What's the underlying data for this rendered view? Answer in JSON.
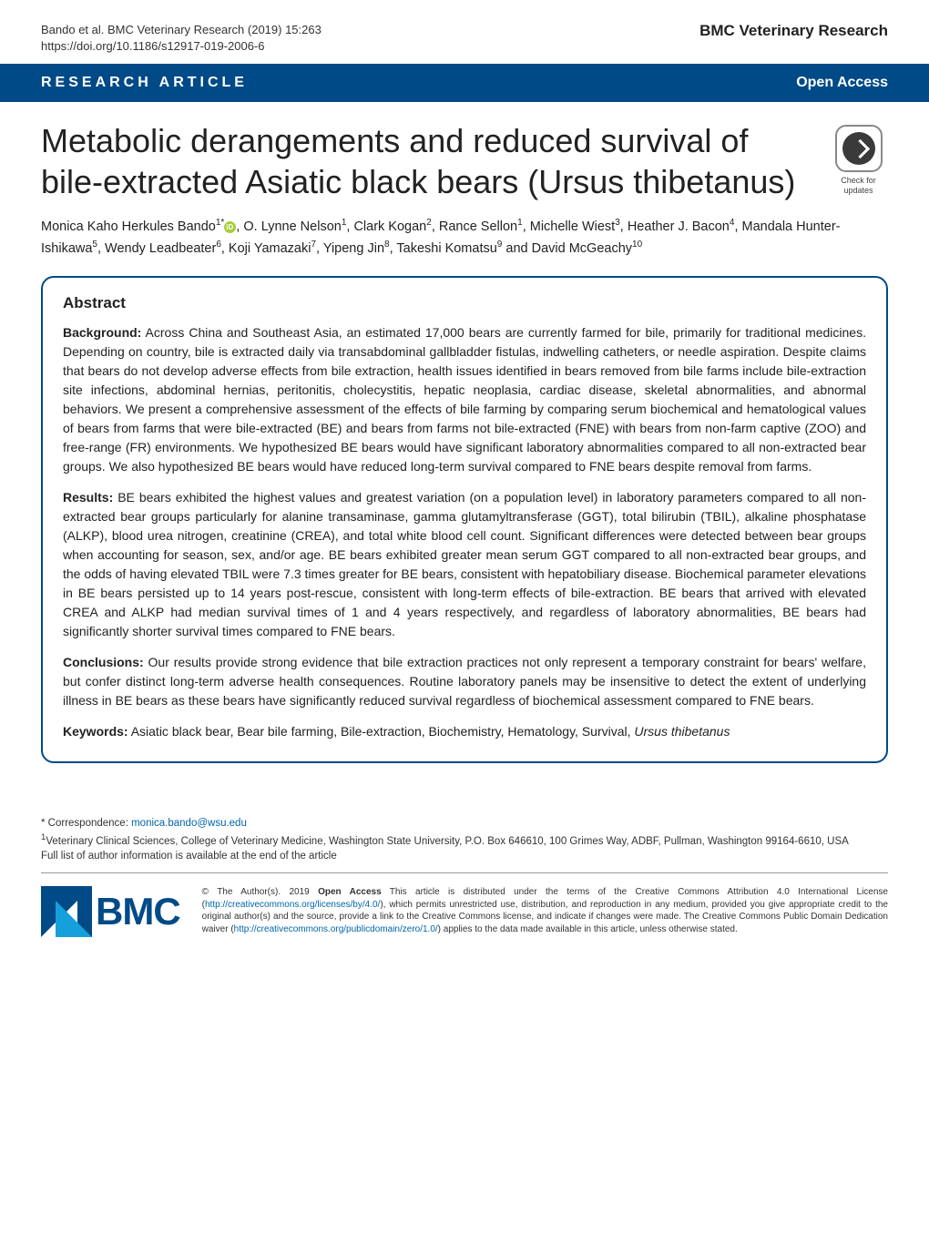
{
  "header": {
    "citation": "Bando et al. BMC Veterinary Research          (2019) 15:263",
    "doi": "https://doi.org/10.1186/s12917-019-2006-6",
    "journal": "BMC Veterinary Research"
  },
  "banner": {
    "section": "RESEARCH ARTICLE",
    "openaccess": "Open Access"
  },
  "title": "Metabolic derangements and reduced survival of bile-extracted Asiatic black bears (Ursus thibetanus)",
  "check_updates": "Check for updates",
  "authors_html": "Monica Kaho Herkules Bando<sup>1*</sup> , O. Lynne Nelson<sup>1</sup>, Clark Kogan<sup>2</sup>, Rance Sellon<sup>1</sup>, Michelle Wiest<sup>3</sup>, Heather J. Bacon<sup>4</sup>, Mandala Hunter-Ishikawa<sup>5</sup>, Wendy Leadbeater<sup>6</sup>, Koji Yamazaki<sup>7</sup>, Yipeng Jin<sup>8</sup>, Takeshi Komatsu<sup>9</sup> and David McGeachy<sup>10</sup>",
  "abstract": {
    "heading": "Abstract",
    "background_label": "Background:",
    "background": " Across China and Southeast Asia, an estimated 17,000 bears are currently farmed for bile, primarily for traditional medicines. Depending on country, bile is extracted daily via transabdominal gallbladder fistulas, indwelling catheters, or needle aspiration. Despite claims that bears do not develop adverse effects from bile extraction, health issues identified in bears removed from bile farms include bile-extraction site infections, abdominal hernias, peritonitis, cholecystitis, hepatic neoplasia, cardiac disease, skeletal abnormalities, and abnormal behaviors. We present a comprehensive assessment of the effects of bile farming by comparing serum biochemical and hematological values of bears from farms that were bile-extracted (BE) and bears from farms not bile-extracted (FNE) with bears from non-farm captive (ZOO) and free-range (FR) environments. We hypothesized BE bears would have significant laboratory abnormalities compared to all non-extracted bear groups. We also hypothesized BE bears would have reduced long-term survival compared to FNE bears despite removal from farms.",
    "results_label": "Results:",
    "results": " BE bears exhibited the highest values and greatest variation (on a population level) in laboratory parameters compared to all non-extracted bear groups particularly for alanine transaminase, gamma glutamyltransferase (GGT), total bilirubin (TBIL), alkaline phosphatase (ALKP), blood urea nitrogen, creatinine (CREA), and total white blood cell count. Significant differences were detected between bear groups when accounting for season, sex, and/or age. BE bears exhibited greater mean serum GGT compared to all non-extracted bear groups, and the odds of having elevated TBIL were 7.3 times greater for BE bears, consistent with hepatobiliary disease. Biochemical parameter elevations in BE bears persisted up to 14 years post-rescue, consistent with long-term effects of bile-extraction. BE bears that arrived with elevated CREA and ALKP had median survival times of 1 and 4 years respectively, and regardless of laboratory abnormalities, BE bears had significantly shorter survival times compared to FNE bears.",
    "conclusions_label": "Conclusions:",
    "conclusions": " Our results provide strong evidence that bile extraction practices not only represent a temporary constraint for bears' welfare, but confer distinct long-term adverse health consequences. Routine laboratory panels may be insensitive to detect the extent of underlying illness in BE bears as these bears have significantly reduced survival regardless of biochemical assessment compared to FNE bears.",
    "keywords_label": "Keywords:",
    "keywords": " Asiatic black bear, Bear bile farming, Bile-extraction, Biochemistry, Hematology, Survival, Ursus thibetanus"
  },
  "footer": {
    "correspondence_label": "* Correspondence: ",
    "correspondence_email": "monica.bando@wsu.edu",
    "affiliation": "Veterinary Clinical Sciences, College of Veterinary Medicine, Washington State University, P.O. Box 646610, 100 Grimes Way, ADBF, Pullman, Washington 99164-6610, USA",
    "full_list": "Full list of author information is available at the end of the article"
  },
  "license": {
    "bmc": "BMC",
    "text1": "© The Author(s). 2019 ",
    "open_access": "Open Access",
    "text2": " This article is distributed under the terms of the Creative Commons Attribution 4.0 International License (",
    "link1": "http://creativecommons.org/licenses/by/4.0/",
    "text3": "), which permits unrestricted use, distribution, and reproduction in any medium, provided you give appropriate credit to the original author(s) and the source, provide a link to the Creative Commons license, and indicate if changes were made. The Creative Commons Public Domain Dedication waiver (",
    "link2": "http://creativecommons.org/publicdomain/zero/1.0/",
    "text4": ") applies to the data made available in this article, unless otherwise stated."
  },
  "colors": {
    "primary": "#004a87",
    "link": "#0066aa",
    "orcid": "#a6ce39"
  }
}
